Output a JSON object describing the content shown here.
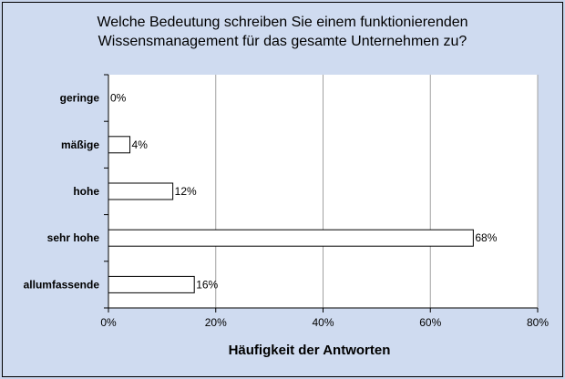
{
  "chart_data": {
    "type": "bar",
    "orientation": "horizontal",
    "title_lines": [
      "Welche Bedeutung schreiben Sie einem funktionierenden",
      "Wissensmanagement für das gesamte Unternehmen zu?"
    ],
    "categories": [
      "geringe",
      "mäßige",
      "hohe",
      "sehr hohe",
      "allumfassende"
    ],
    "values": [
      0,
      4,
      12,
      68,
      16
    ],
    "value_labels": [
      "0%",
      "4%",
      "12%",
      "68%",
      "16%"
    ],
    "xlabel": "Häufigkeit der Antworten",
    "ylabel": "",
    "xlim": [
      0,
      80
    ],
    "xticks": [
      "0%",
      "20%",
      "40%",
      "60%",
      "80%"
    ],
    "grid": true,
    "colors": {
      "background": "#cfdbf0",
      "plot_area": "#ffffff",
      "bar_fill": "#ffffff",
      "bar_stroke": "#000000",
      "grid": "#a0a0a0"
    }
  }
}
